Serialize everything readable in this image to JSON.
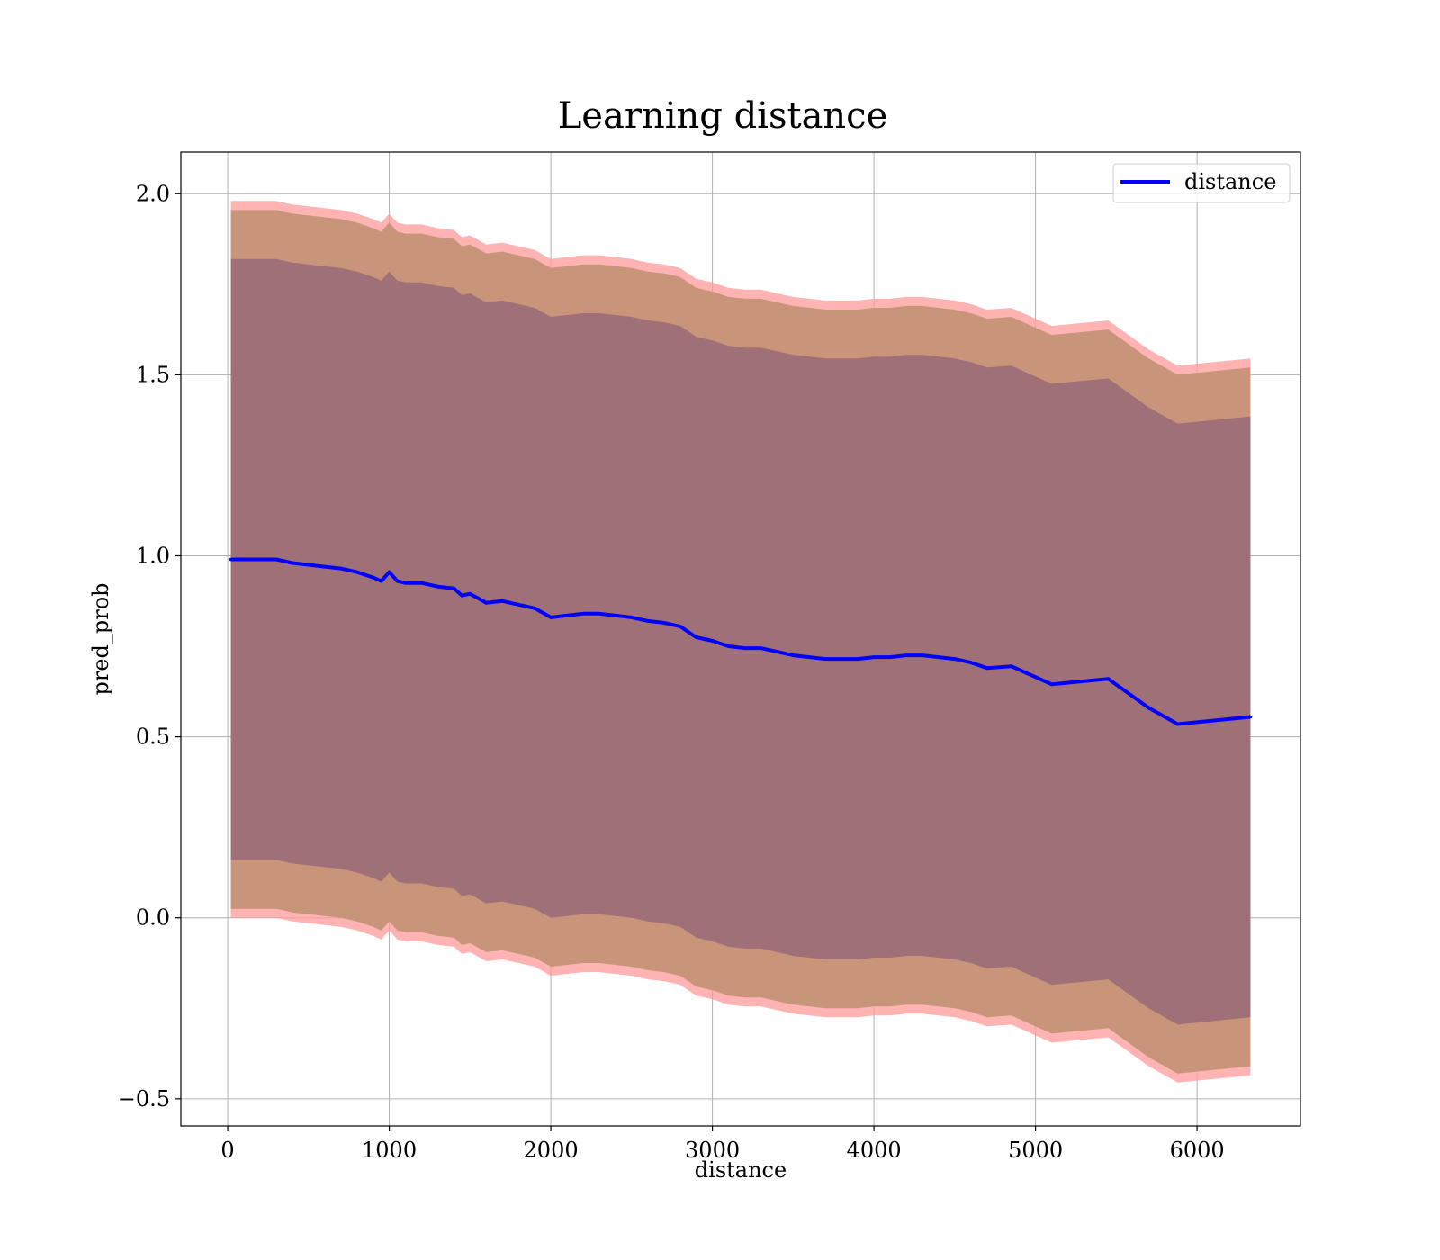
{
  "chart_data": {
    "type": "line",
    "title": "Learning distance",
    "xlabel": "distance",
    "ylabel": "pred_prob",
    "xlim": [
      -290,
      6640
    ],
    "ylim": [
      -0.575,
      2.115
    ],
    "xticks": [
      0,
      1000,
      2000,
      3000,
      4000,
      5000,
      6000
    ],
    "xtick_labels": [
      "0",
      "1000",
      "2000",
      "3000",
      "4000",
      "5000",
      "6000"
    ],
    "yticks": [
      -0.5,
      0.0,
      0.5,
      1.0,
      1.5,
      2.0
    ],
    "ytick_labels": [
      "−0.5",
      "0.0",
      "0.5",
      "1.0",
      "1.5",
      "2.0"
    ],
    "grid": true,
    "legend": {
      "position": "top-right",
      "entries": [
        "distance"
      ]
    },
    "colors": {
      "line": "#0000ff",
      "outer_band": "#ff9a9a",
      "middle_band": "#c8957a",
      "inner_band": "#a07078"
    },
    "x": [
      20,
      100,
      200,
      300,
      400,
      500,
      600,
      700,
      800,
      900,
      950,
      1000,
      1050,
      1100,
      1200,
      1300,
      1400,
      1450,
      1500,
      1600,
      1700,
      1800,
      1900,
      2000,
      2100,
      2200,
      2300,
      2400,
      2500,
      2600,
      2700,
      2800,
      2850,
      2900,
      3000,
      3100,
      3200,
      3300,
      3400,
      3500,
      3600,
      3700,
      3800,
      3900,
      4000,
      4100,
      4200,
      4300,
      4400,
      4500,
      4600,
      4700,
      4850,
      5000,
      5100,
      5450,
      5700,
      5880,
      6330
    ],
    "series": [
      {
        "name": "distance",
        "values": [
          0.99,
          0.99,
          0.99,
          0.99,
          0.98,
          0.975,
          0.97,
          0.965,
          0.955,
          0.94,
          0.93,
          0.955,
          0.93,
          0.925,
          0.925,
          0.915,
          0.91,
          0.89,
          0.895,
          0.87,
          0.875,
          0.865,
          0.855,
          0.83,
          0.835,
          0.84,
          0.84,
          0.835,
          0.83,
          0.82,
          0.815,
          0.805,
          0.79,
          0.775,
          0.765,
          0.75,
          0.745,
          0.745,
          0.735,
          0.725,
          0.72,
          0.715,
          0.715,
          0.715,
          0.72,
          0.72,
          0.725,
          0.725,
          0.72,
          0.715,
          0.705,
          0.69,
          0.695,
          0.665,
          0.645,
          0.66,
          0.58,
          0.535,
          0.555
        ]
      }
    ],
    "bands": [
      {
        "name": "outer",
        "halfwidth": 0.99
      },
      {
        "name": "middle",
        "halfwidth": 0.965
      },
      {
        "name": "inner",
        "halfwidth": 0.83
      }
    ]
  }
}
